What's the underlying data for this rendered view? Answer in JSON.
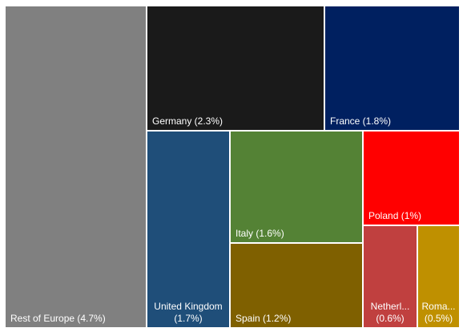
{
  "chart_data": {
    "type": "treemap",
    "items": [
      {
        "name": "Rest of Europe",
        "value": 4.7,
        "label": "Rest of Europe (4.7%)",
        "color": "#808080"
      },
      {
        "name": "Germany",
        "value": 2.3,
        "label": "Germany (2.3%)",
        "color": "#1a1a1a"
      },
      {
        "name": "France",
        "value": 1.8,
        "label": "France (1.8%)",
        "color": "#002060"
      },
      {
        "name": "United Kingdom",
        "value": 1.7,
        "label": "United Kingdom (1.7%)",
        "label_lines": [
          "United Kingdom",
          "(1.7%)"
        ],
        "color": "#1f4e79"
      },
      {
        "name": "Italy",
        "value": 1.6,
        "label": "Italy (1.6%)",
        "color": "#548235"
      },
      {
        "name": "Spain",
        "value": 1.2,
        "label": "Spain (1.2%)",
        "color": "#7f6000"
      },
      {
        "name": "Poland",
        "value": 1.0,
        "label": "Poland (1%)",
        "color": "#ff0000"
      },
      {
        "name": "Netherlands",
        "value": 0.6,
        "label": "Netherl... (0.6%)",
        "label_lines": [
          "Netherl...",
          "(0.6%)"
        ],
        "color": "#c0403f"
      },
      {
        "name": "Romania",
        "value": 0.5,
        "label": "Roma... (0.5%)",
        "label_lines": [
          "Roma...",
          "(0.5%)"
        ],
        "color": "#bf9000"
      }
    ]
  }
}
